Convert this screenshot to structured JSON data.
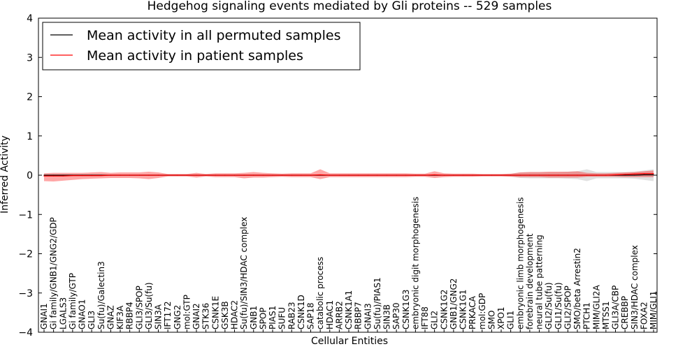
{
  "chart_data": {
    "type": "line",
    "title": "Hedgehog signaling events mediated by Gli proteins -- 529 samples",
    "xlabel": "Cellular Entities",
    "ylabel": "Inferred Activity",
    "ylim": [
      -4,
      4
    ],
    "yticks": [
      4,
      3,
      2,
      1,
      0,
      -1,
      -2,
      -3,
      -4
    ],
    "ytick_labels": [
      "4",
      "3",
      "2",
      "1",
      "0",
      "−1",
      "−2",
      "−3",
      "−4"
    ],
    "legend": {
      "placement": "top-left",
      "entries": [
        {
          "label": "Mean activity in all permuted samples",
          "color": "#000000"
        },
        {
          "label": "Mean activity in patient samples",
          "color": "#ff0000"
        }
      ]
    },
    "categories": [
      "GNAI1",
      "Gi family/GNB1/GNG2/GDP",
      "LGALS3",
      "Gi family/GTP",
      "GNAO1",
      "GLI3",
      "Su(fu)/Galectin3",
      "GNAZ",
      "KIF3A",
      "RBBP4",
      "GLI3/SPOP",
      "GLI3/Su(fu)",
      "SIN3A",
      "IFT172",
      "GNG2",
      "mol:GTP",
      "GNAI2",
      "STK36",
      "CSNK1E",
      "GSK3B",
      "HDAC2",
      "Su(fu)/SIN3/HDAC complex",
      "GNB1",
      "SPOP",
      "PIAS1",
      "SUFU",
      "RAB23",
      "CSNK1D",
      "SAP18",
      "catabolic process",
      "HDAC1",
      "ARRB2",
      "CSNK1A1",
      "RBBP7",
      "GNAI3",
      "Su(fu)/PIAS1",
      "SIN3B",
      "SAP30",
      "CSNK1G3",
      "embryonic digit morphogenesis",
      "IFT88",
      "GLI2",
      "CSNK1G2",
      "GNB1/GNG2",
      "CSNK1G1",
      "PRKACA",
      "mol:GDP",
      "SMO",
      "XPO1",
      "GLI1",
      "embryonic limb morphogenesis",
      "forebrain development",
      "neural tube patterning",
      "GLI2/Su(fu)",
      "GLI1/Su(fu)",
      "GLI2/SPOP",
      "SMO/beta Arrestin2",
      "PTCH1",
      "MIM/GLI2A",
      "MTSS1",
      "GLI3A/CBP",
      "CREBBP",
      "SIN3/HDAC complex",
      "FOXA2",
      "MIM/GLI1"
    ],
    "series": [
      {
        "name": "Mean activity in all permuted samples",
        "color": "#000000",
        "values": [
          0.0,
          0.0,
          0.0,
          0.0,
          0.0,
          0.0,
          0.0,
          0.0,
          0.0,
          0.0,
          0.0,
          0.0,
          0.0,
          0.0,
          0.0,
          0.0,
          0.0,
          0.0,
          0.0,
          0.0,
          0.0,
          0.0,
          0.0,
          0.0,
          0.0,
          0.0,
          0.0,
          0.0,
          0.0,
          0.0,
          0.0,
          0.0,
          0.0,
          0.0,
          0.0,
          0.0,
          0.0,
          0.0,
          0.0,
          0.0,
          0.0,
          0.0,
          0.0,
          0.0,
          0.0,
          0.0,
          0.0,
          0.0,
          0.0,
          0.0,
          0.0,
          0.0,
          0.0,
          0.0,
          0.0,
          0.0,
          0.0,
          0.0,
          0.0,
          0.0,
          0.0,
          0.0,
          0.0,
          0.01,
          0.01
        ],
        "band_upper": [
          0.02,
          0.02,
          0.02,
          0.02,
          0.02,
          0.02,
          0.02,
          0.02,
          0.02,
          0.02,
          0.02,
          0.02,
          0.02,
          0.02,
          0.02,
          0.02,
          0.02,
          0.02,
          0.02,
          0.02,
          0.02,
          0.02,
          0.02,
          0.02,
          0.02,
          0.02,
          0.02,
          0.02,
          0.02,
          0.02,
          0.02,
          0.02,
          0.02,
          0.02,
          0.02,
          0.02,
          0.02,
          0.02,
          0.02,
          0.02,
          0.02,
          0.02,
          0.02,
          0.02,
          0.02,
          0.02,
          0.02,
          0.02,
          0.02,
          0.03,
          0.07,
          0.08,
          0.08,
          0.08,
          0.08,
          0.09,
          0.1,
          0.15,
          0.08,
          0.08,
          0.08,
          0.08,
          0.09,
          0.12,
          0.15
        ],
        "band_lower": [
          -0.02,
          -0.02,
          -0.02,
          -0.02,
          -0.02,
          -0.02,
          -0.02,
          -0.02,
          -0.02,
          -0.02,
          -0.02,
          -0.02,
          -0.02,
          -0.02,
          -0.02,
          -0.02,
          -0.02,
          -0.02,
          -0.02,
          -0.02,
          -0.02,
          -0.02,
          -0.02,
          -0.02,
          -0.02,
          -0.02,
          -0.02,
          -0.02,
          -0.02,
          -0.02,
          -0.02,
          -0.02,
          -0.02,
          -0.02,
          -0.02,
          -0.02,
          -0.02,
          -0.02,
          -0.02,
          -0.02,
          -0.02,
          -0.02,
          -0.02,
          -0.02,
          -0.02,
          -0.02,
          -0.02,
          -0.02,
          -0.02,
          -0.03,
          -0.07,
          -0.08,
          -0.08,
          -0.08,
          -0.08,
          -0.09,
          -0.1,
          -0.15,
          -0.08,
          -0.08,
          -0.08,
          -0.08,
          -0.09,
          -0.12,
          -0.15
        ]
      },
      {
        "name": "Mean activity in patient samples",
        "color": "#ff0000",
        "values": [
          -0.02,
          -0.02,
          -0.02,
          -0.01,
          -0.01,
          -0.01,
          -0.01,
          0.0,
          0.0,
          0.0,
          0.0,
          0.0,
          0.0,
          0.0,
          0.0,
          0.0,
          0.0,
          0.0,
          0.0,
          0.0,
          0.0,
          0.0,
          0.0,
          0.0,
          0.0,
          0.0,
          0.0,
          0.0,
          0.0,
          0.01,
          0.0,
          0.0,
          0.0,
          0.0,
          0.0,
          0.0,
          0.0,
          0.0,
          0.0,
          0.0,
          0.0,
          0.01,
          0.0,
          0.0,
          0.0,
          0.0,
          0.0,
          0.0,
          0.0,
          0.0,
          0.0,
          0.0,
          0.0,
          0.0,
          0.0,
          0.0,
          0.0,
          0.0,
          0.0,
          0.0,
          0.01,
          0.02,
          0.03,
          0.04,
          0.04
        ],
        "band_upper": [
          0.05,
          0.06,
          0.06,
          0.06,
          0.06,
          0.07,
          0.08,
          0.06,
          0.07,
          0.07,
          0.07,
          0.09,
          0.07,
          0.03,
          0.03,
          0.03,
          0.06,
          0.03,
          0.05,
          0.05,
          0.05,
          0.06,
          0.08,
          0.06,
          0.05,
          0.04,
          0.05,
          0.05,
          0.05,
          0.15,
          0.05,
          0.05,
          0.05,
          0.05,
          0.05,
          0.05,
          0.05,
          0.05,
          0.05,
          0.04,
          0.04,
          0.1,
          0.05,
          0.04,
          0.04,
          0.04,
          0.03,
          0.03,
          0.03,
          0.04,
          0.07,
          0.08,
          0.08,
          0.09,
          0.09,
          0.09,
          0.1,
          0.06,
          0.05,
          0.05,
          0.06,
          0.07,
          0.08,
          0.1,
          0.12
        ],
        "band_lower": [
          -0.15,
          -0.16,
          -0.14,
          -0.12,
          -0.1,
          -0.09,
          -0.08,
          -0.07,
          -0.07,
          -0.07,
          -0.08,
          -0.1,
          -0.07,
          -0.03,
          -0.03,
          -0.03,
          -0.06,
          -0.03,
          -0.05,
          -0.05,
          -0.05,
          -0.08,
          -0.06,
          -0.06,
          -0.05,
          -0.04,
          -0.05,
          -0.05,
          -0.05,
          -0.1,
          -0.05,
          -0.05,
          -0.05,
          -0.05,
          -0.05,
          -0.05,
          -0.05,
          -0.05,
          -0.05,
          -0.04,
          -0.04,
          -0.07,
          -0.05,
          -0.04,
          -0.04,
          -0.04,
          -0.03,
          -0.03,
          -0.03,
          -0.04,
          -0.05,
          -0.05,
          -0.05,
          -0.06,
          -0.06,
          -0.06,
          -0.06,
          -0.04,
          -0.04,
          -0.04,
          -0.04,
          -0.05,
          -0.05,
          -0.05,
          -0.05
        ]
      }
    ]
  }
}
